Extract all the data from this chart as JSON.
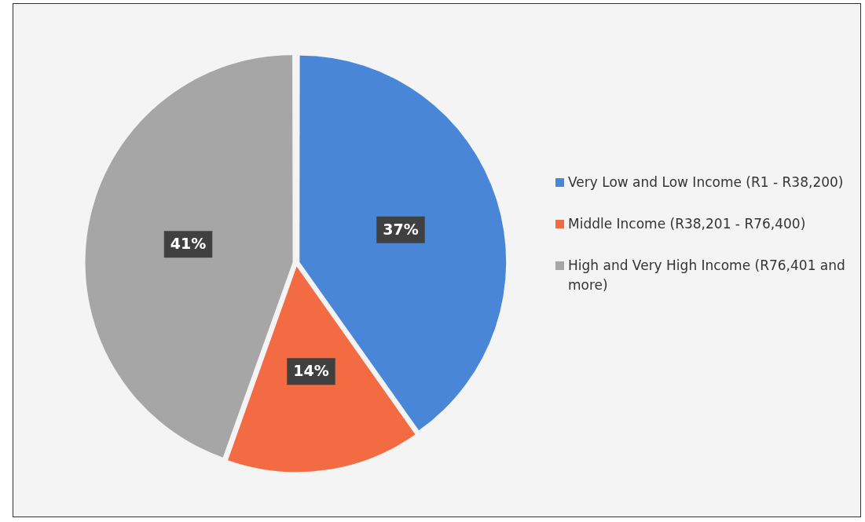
{
  "chart_data": {
    "type": "pie",
    "categories": [
      "Very Low and Low Income (R1 - R38,200)",
      "Middle Income (R38,201 - R76,400)",
      "High and Very High Income (R76,401 and more)"
    ],
    "values": [
      37,
      14,
      41
    ],
    "colors": [
      "#4a86d8",
      "#f26b43",
      "#a6a6a6"
    ],
    "value_labels": [
      "37%",
      "14%",
      "41%"
    ],
    "legend": "right"
  }
}
